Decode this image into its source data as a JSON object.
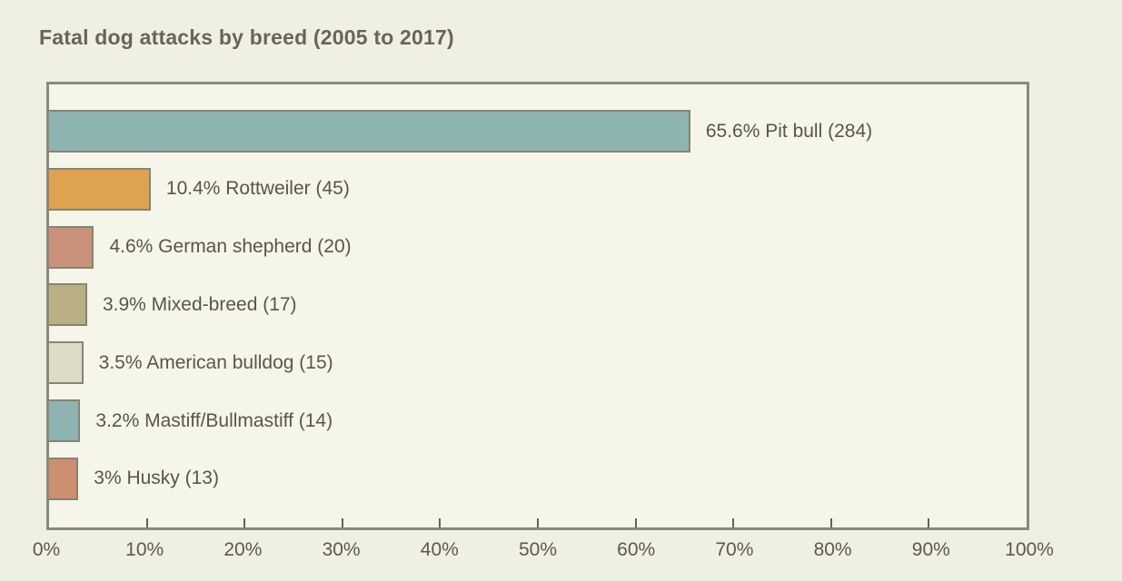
{
  "title": "Fatal dog attacks by breed (2005 to 2017)",
  "colors": {
    "page_background": "#f0efe3",
    "plot_background": "#f6f5ea",
    "plot_border": "#8b897c",
    "bar_stroke": "#868474",
    "title_text": "#6b6456",
    "label_text": "#595549",
    "axis_text": "#5c584c"
  },
  "chart_data": {
    "type": "bar",
    "orientation": "horizontal",
    "title": "Fatal dog attacks by breed (2005 to 2017)",
    "categories": [
      "Pit bull",
      "Rottweiler",
      "German shepherd",
      "Mixed-breed",
      "American bulldog",
      "Mastiff/Bullmastiff",
      "Husky"
    ],
    "values_percent": [
      65.6,
      10.4,
      4.6,
      3.9,
      3.5,
      3.2,
      3
    ],
    "counts": [
      284,
      45,
      20,
      17,
      15,
      14,
      13
    ],
    "labels": [
      "65.6% Pit bull (284)",
      "10.4% Rottweiler (45)",
      "4.6% German shepherd (20)",
      "3.9% Mixed-breed (17)",
      "3.5% American bulldog (15)",
      "3.2% Mastiff/Bullmastiff (14)",
      "3% Husky (13)"
    ],
    "bar_colors": [
      "#8db4b0",
      "#dfa24e",
      "#ca917a",
      "#b9b083",
      "#dedcc8",
      "#8db4b0",
      "#cc8f6f"
    ],
    "xlabel": "",
    "ylabel": "",
    "xlim": [
      0,
      100
    ],
    "x_ticks": [
      0,
      10,
      20,
      30,
      40,
      50,
      60,
      70,
      80,
      90,
      100
    ],
    "x_tick_labels": [
      "0%",
      "10%",
      "20%",
      "30%",
      "40%",
      "50%",
      "60%",
      "70%",
      "80%",
      "90%",
      "100%"
    ],
    "grid": false,
    "legend": "none",
    "data_label_position": "right-of-bar"
  }
}
